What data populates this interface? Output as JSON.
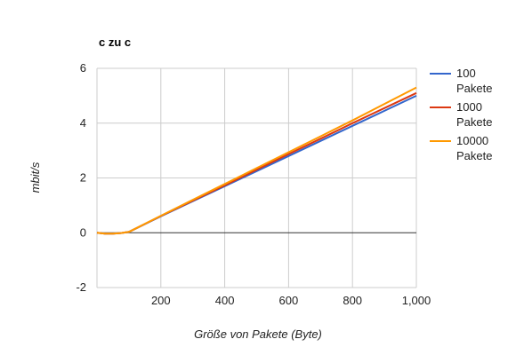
{
  "chart_data": {
    "type": "line",
    "title": "c zu c",
    "xlabel": "Größe von Pakete (Byte)",
    "ylabel": "mbit/s",
    "xlim": [
      0,
      1000
    ],
    "ylim": [
      -2,
      6
    ],
    "x_ticks": [
      200,
      400,
      600,
      800,
      1000
    ],
    "x_tick_labels": [
      "200",
      "400",
      "600",
      "800",
      "1,000"
    ],
    "y_ticks": [
      -2,
      0,
      2,
      4,
      6
    ],
    "y_tick_labels": [
      "-2",
      "0",
      "2",
      "4",
      "6"
    ],
    "grid": true,
    "legend_position": "right",
    "x": [
      0,
      25,
      50,
      75,
      100,
      200,
      300,
      400,
      500,
      600,
      700,
      800,
      900,
      1000
    ],
    "series": [
      {
        "name": "100 Pakete",
        "color": "#3366cc",
        "values": [
          0,
          -0.03,
          -0.03,
          -0.01,
          0.03,
          0.6,
          1.15,
          1.7,
          2.25,
          2.8,
          3.35,
          3.9,
          4.45,
          5.0
        ]
      },
      {
        "name": "1000 Pakete",
        "color": "#dc3912",
        "values": [
          0,
          -0.03,
          -0.03,
          -0.01,
          0.03,
          0.61,
          1.17,
          1.73,
          2.3,
          2.87,
          3.43,
          4.0,
          4.55,
          5.1
        ]
      },
      {
        "name": "10000 Pakete",
        "color": "#ff9900",
        "values": [
          0,
          -0.03,
          -0.03,
          -0.01,
          0.03,
          0.62,
          1.2,
          1.78,
          2.36,
          2.94,
          3.52,
          4.1,
          4.7,
          5.3
        ]
      }
    ],
    "legend_lines": [
      [
        "100",
        "Pakete"
      ],
      [
        "1000",
        "Pakete"
      ],
      [
        "10000",
        "Pakete"
      ]
    ]
  }
}
